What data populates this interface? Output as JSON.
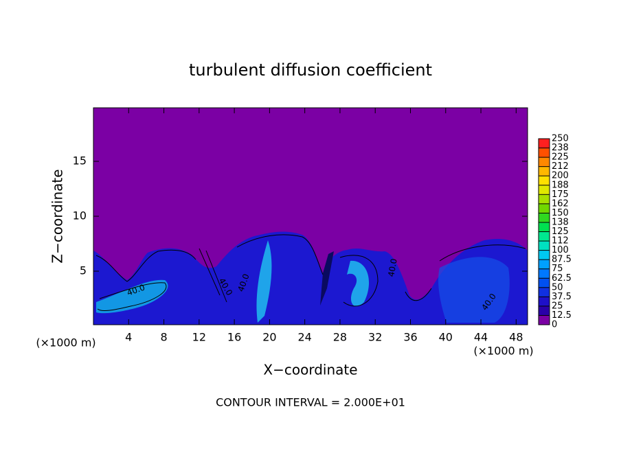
{
  "chart_data": {
    "type": "contour-field",
    "title": "turbulent diffusion coefficient",
    "x_label": "X−coordinate",
    "y_label": "Z−coordinate",
    "x_unit_left": "(×1000 m)",
    "x_unit_right": "(×1000 m)",
    "footer": "CONTOUR INTERVAL = 2.000E+01",
    "xlim": [
      0,
      49.3
    ],
    "ylim": [
      0.125,
      19.875
    ],
    "xticks": [
      4,
      8,
      12,
      16,
      20,
      24,
      28,
      32,
      36,
      40,
      44,
      48
    ],
    "yticks": [
      5,
      10,
      15
    ],
    "background_color": "#7b00a4",
    "contour_labels": [
      "40.0",
      "40.0",
      "40.0",
      "40.0",
      "40.0"
    ],
    "colorbar": {
      "levels": [
        0,
        12.5,
        25,
        37.5,
        50,
        62.5,
        75,
        87.5,
        100,
        112,
        125,
        138,
        150,
        162,
        175,
        188,
        200,
        212,
        225,
        238,
        250
      ],
      "colors": [
        "#7b00a4",
        "#2a00a8",
        "#1e10c8",
        "#1030e0",
        "#0050f0",
        "#0078ff",
        "#00a0ff",
        "#00c8f0",
        "#00e0c0",
        "#00e890",
        "#00e050",
        "#30d820",
        "#70d800",
        "#a8e000",
        "#e0e800",
        "#ffe000",
        "#ffb800",
        "#ff8800",
        "#ff5000",
        "#ff2020"
      ]
    }
  }
}
